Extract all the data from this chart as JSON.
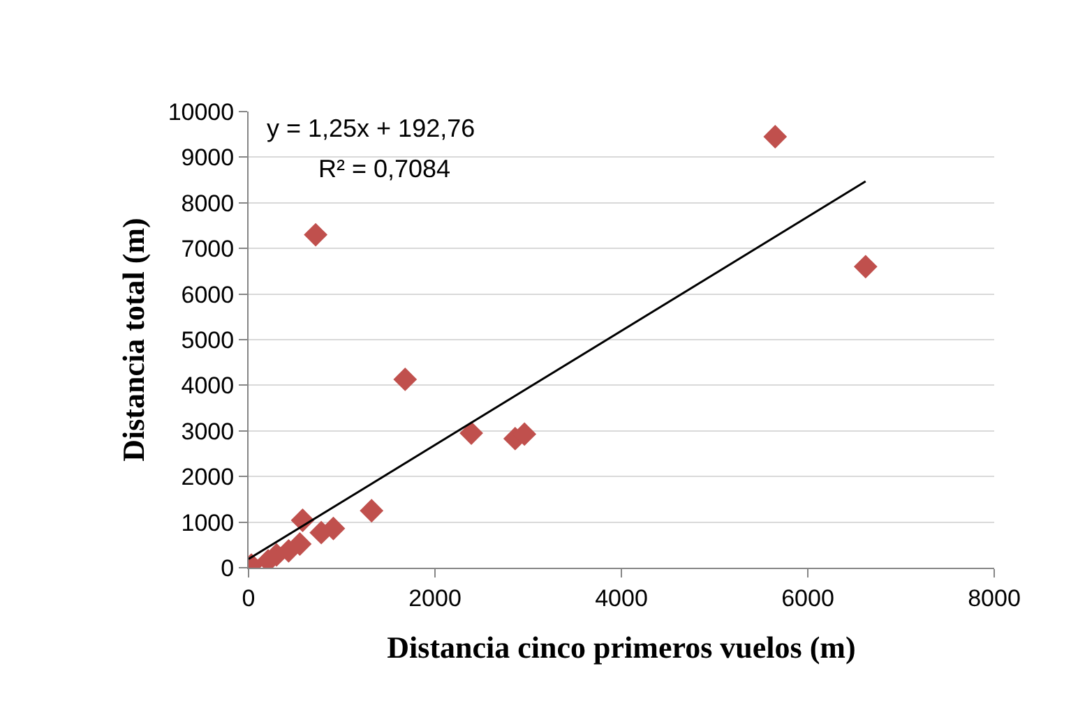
{
  "chart_data": {
    "type": "scatter",
    "xlabel": "Distancia cinco primeros vuelos (m)",
    "ylabel": "Distancia total (m)",
    "xlim": [
      0,
      8000
    ],
    "xticks": [
      0,
      2000,
      4000,
      6000,
      8000
    ],
    "ylim": [
      0,
      10000
    ],
    "yticks": [
      0,
      1000,
      2000,
      3000,
      4000,
      5000,
      6000,
      7000,
      8000,
      9000,
      10000
    ],
    "grid": "y",
    "series": [
      {
        "color": "#c0504d",
        "marker": "diamond",
        "x": [
          30,
          210,
          300,
          430,
          550,
          580,
          780,
          910,
          1320,
          720,
          1680,
          2390,
          2860,
          2960,
          5650,
          6620
        ],
        "values": [
          60,
          150,
          280,
          370,
          520,
          1040,
          770,
          860,
          1250,
          7300,
          4130,
          2950,
          2830,
          2930,
          9450,
          6600
        ]
      },
      {
        "type": "line",
        "color": "#000000",
        "marker": "none",
        "x": [
          0,
          6620
        ],
        "values": [
          190,
          8470
        ]
      }
    ],
    "annotations": [
      "y = 1,25x + 192,76",
      "R² = 0,7084"
    ]
  }
}
